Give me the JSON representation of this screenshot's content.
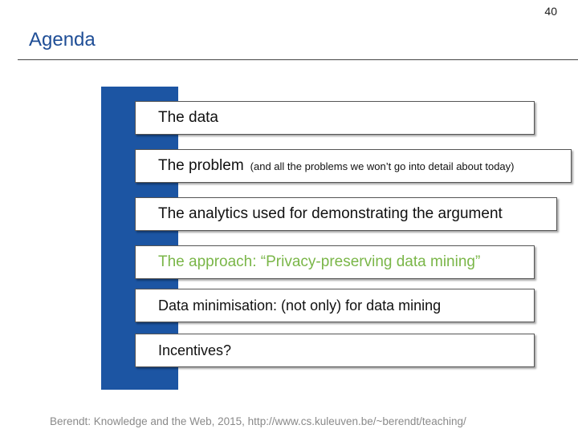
{
  "slide": {
    "page_number": "40",
    "title": "Agenda",
    "items": [
      {
        "label": "The data",
        "note": ""
      },
      {
        "label": "The problem",
        "note": "(and all the problems we won’t go into detail about today)"
      },
      {
        "label": "The analytics used for demonstrating the argument",
        "note": ""
      },
      {
        "label": "The approach: “Privacy-preserving data mining”",
        "note": ""
      },
      {
        "label": "Data minimisation: (not only) for data mining",
        "note": ""
      },
      {
        "label": "Incentives?",
        "note": ""
      }
    ],
    "footer": "Berendt: Knowledge and the Web, 2015, http://www.cs.kuleuven.be/~berendt/teaching/"
  },
  "colors": {
    "title": "#1f4e96",
    "bar": "#1c55a3",
    "highlight_item": "#7ab648",
    "footer": "#8a8a8a"
  }
}
